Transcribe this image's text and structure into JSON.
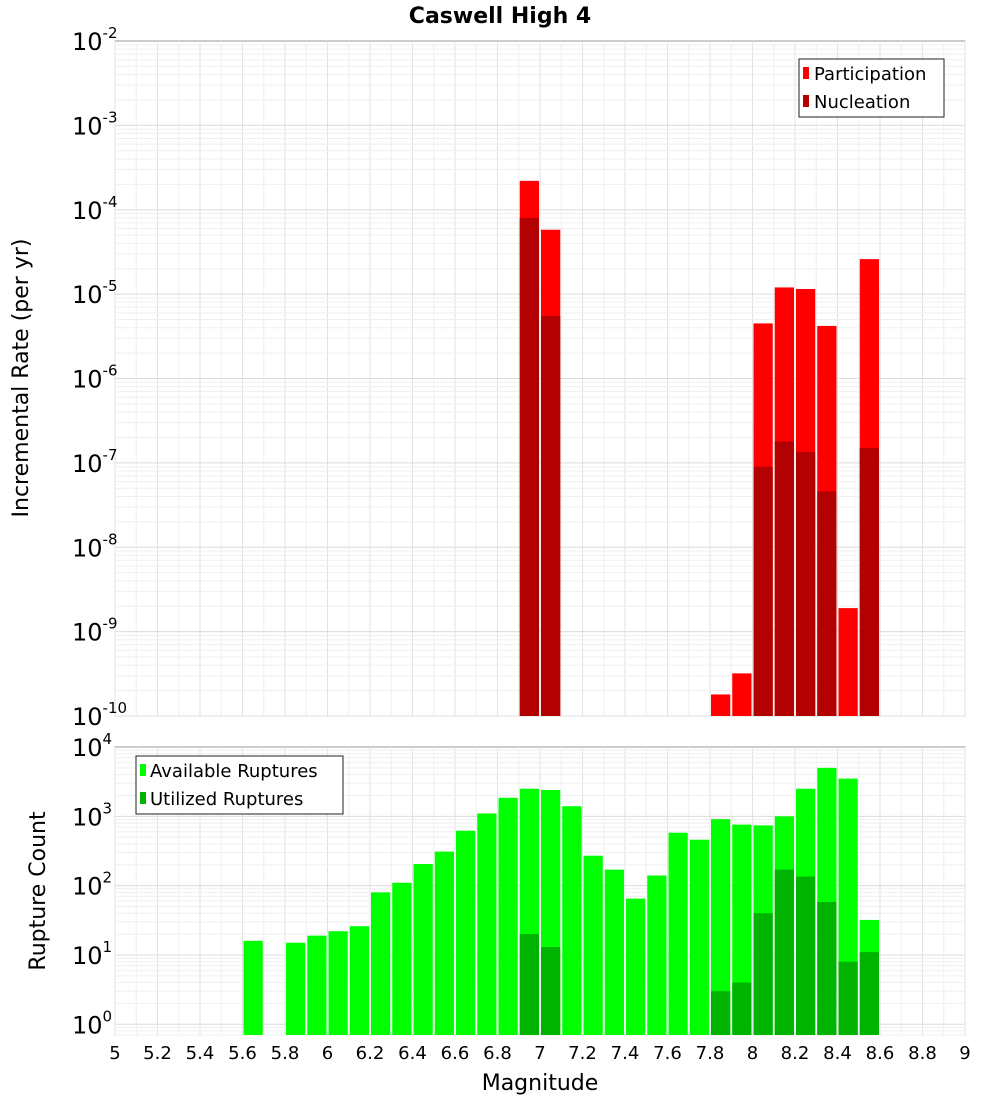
{
  "chart_data": [
    {
      "type": "bar",
      "title": "Caswell High 4",
      "ylabel": "Incremental Rate (per yr)",
      "xlabel": "",
      "yscale": "log",
      "ylim": [
        1e-10,
        0.01
      ],
      "xlim": [
        5,
        9
      ],
      "bin_width": 0.1,
      "grid": true,
      "legend_position": "top-right",
      "legend_frame": "#222222",
      "y_tick_labels": [
        {
          "base": "10",
          "exp": "-10",
          "value": 1e-10
        },
        {
          "base": "10",
          "exp": "-9",
          "value": 1e-09
        },
        {
          "base": "10",
          "exp": "-8",
          "value": 1e-08
        },
        {
          "base": "10",
          "exp": "-7",
          "value": 1e-07
        },
        {
          "base": "10",
          "exp": "-6",
          "value": 1e-06
        },
        {
          "base": "10",
          "exp": "-5",
          "value": 1e-05
        },
        {
          "base": "10",
          "exp": "-4",
          "value": 0.0001
        },
        {
          "base": "10",
          "exp": "-3",
          "value": 0.001
        },
        {
          "base": "10",
          "exp": "-2",
          "value": 0.01
        }
      ],
      "series": [
        {
          "name": "Participation",
          "color": "#ff0000",
          "x": [
            6.95,
            7.05,
            7.85,
            7.95,
            8.05,
            8.15,
            8.25,
            8.35,
            8.45,
            8.55
          ],
          "values": [
            0.00022,
            5.8e-05,
            1.8e-10,
            3.2e-10,
            4.5e-06,
            1.2e-05,
            1.15e-05,
            4.2e-06,
            1.9e-09,
            2.6e-05
          ]
        },
        {
          "name": "Nucleation",
          "color": "#b30000",
          "x": [
            6.95,
            7.05,
            8.05,
            8.15,
            8.25,
            8.35,
            8.55
          ],
          "values": [
            8e-05,
            5.5e-06,
            9e-08,
            1.8e-07,
            1.35e-07,
            4.6e-08,
            1.5e-07
          ]
        }
      ]
    },
    {
      "type": "bar",
      "title": "",
      "ylabel": "Rupture Count",
      "xlabel": "Magnitude",
      "yscale": "log",
      "ylim": [
        0.7,
        10000
      ],
      "xlim": [
        5,
        9
      ],
      "bin_width": 0.1,
      "grid": true,
      "legend_position": "top-left",
      "legend_frame": "#222222",
      "x_tick_labels": [
        "5",
        "5.2",
        "5.4",
        "5.6",
        "5.8",
        "6",
        "6.2",
        "6.4",
        "6.6",
        "6.8",
        "7",
        "7.2",
        "7.4",
        "7.6",
        "7.8",
        "8",
        "8.2",
        "8.4",
        "8.6",
        "8.8",
        "9"
      ],
      "y_tick_labels": [
        {
          "base": "10",
          "exp": "0",
          "value": 1
        },
        {
          "base": "10",
          "exp": "1",
          "value": 10
        },
        {
          "base": "10",
          "exp": "2",
          "value": 100
        },
        {
          "base": "10",
          "exp": "3",
          "value": 1000
        },
        {
          "base": "10",
          "exp": "4",
          "value": 10000
        }
      ],
      "series": [
        {
          "name": "Available Ruptures",
          "color": "#00ff00",
          "x": [
            5.65,
            5.85,
            5.95,
            6.05,
            6.15,
            6.25,
            6.35,
            6.45,
            6.55,
            6.65,
            6.75,
            6.85,
            6.95,
            7.05,
            7.15,
            7.25,
            7.35,
            7.45,
            7.55,
            7.65,
            7.75,
            7.85,
            7.95,
            8.05,
            8.15,
            8.25,
            8.35,
            8.45,
            8.55
          ],
          "values": [
            16,
            15,
            19,
            22,
            26,
            80,
            110,
            205,
            310,
            620,
            1100,
            1850,
            2500,
            2400,
            1400,
            270,
            170,
            65,
            140,
            580,
            460,
            910,
            760,
            740,
            1000,
            2500,
            5000,
            3500,
            32
          ]
        },
        {
          "name": "Utilized Ruptures",
          "color": "#00b300",
          "x": [
            6.95,
            7.05,
            7.85,
            7.95,
            8.05,
            8.15,
            8.25,
            8.35,
            8.45,
            8.55
          ],
          "values": [
            20,
            13,
            3,
            4,
            40,
            170,
            135,
            58,
            8,
            11
          ]
        }
      ]
    }
  ]
}
